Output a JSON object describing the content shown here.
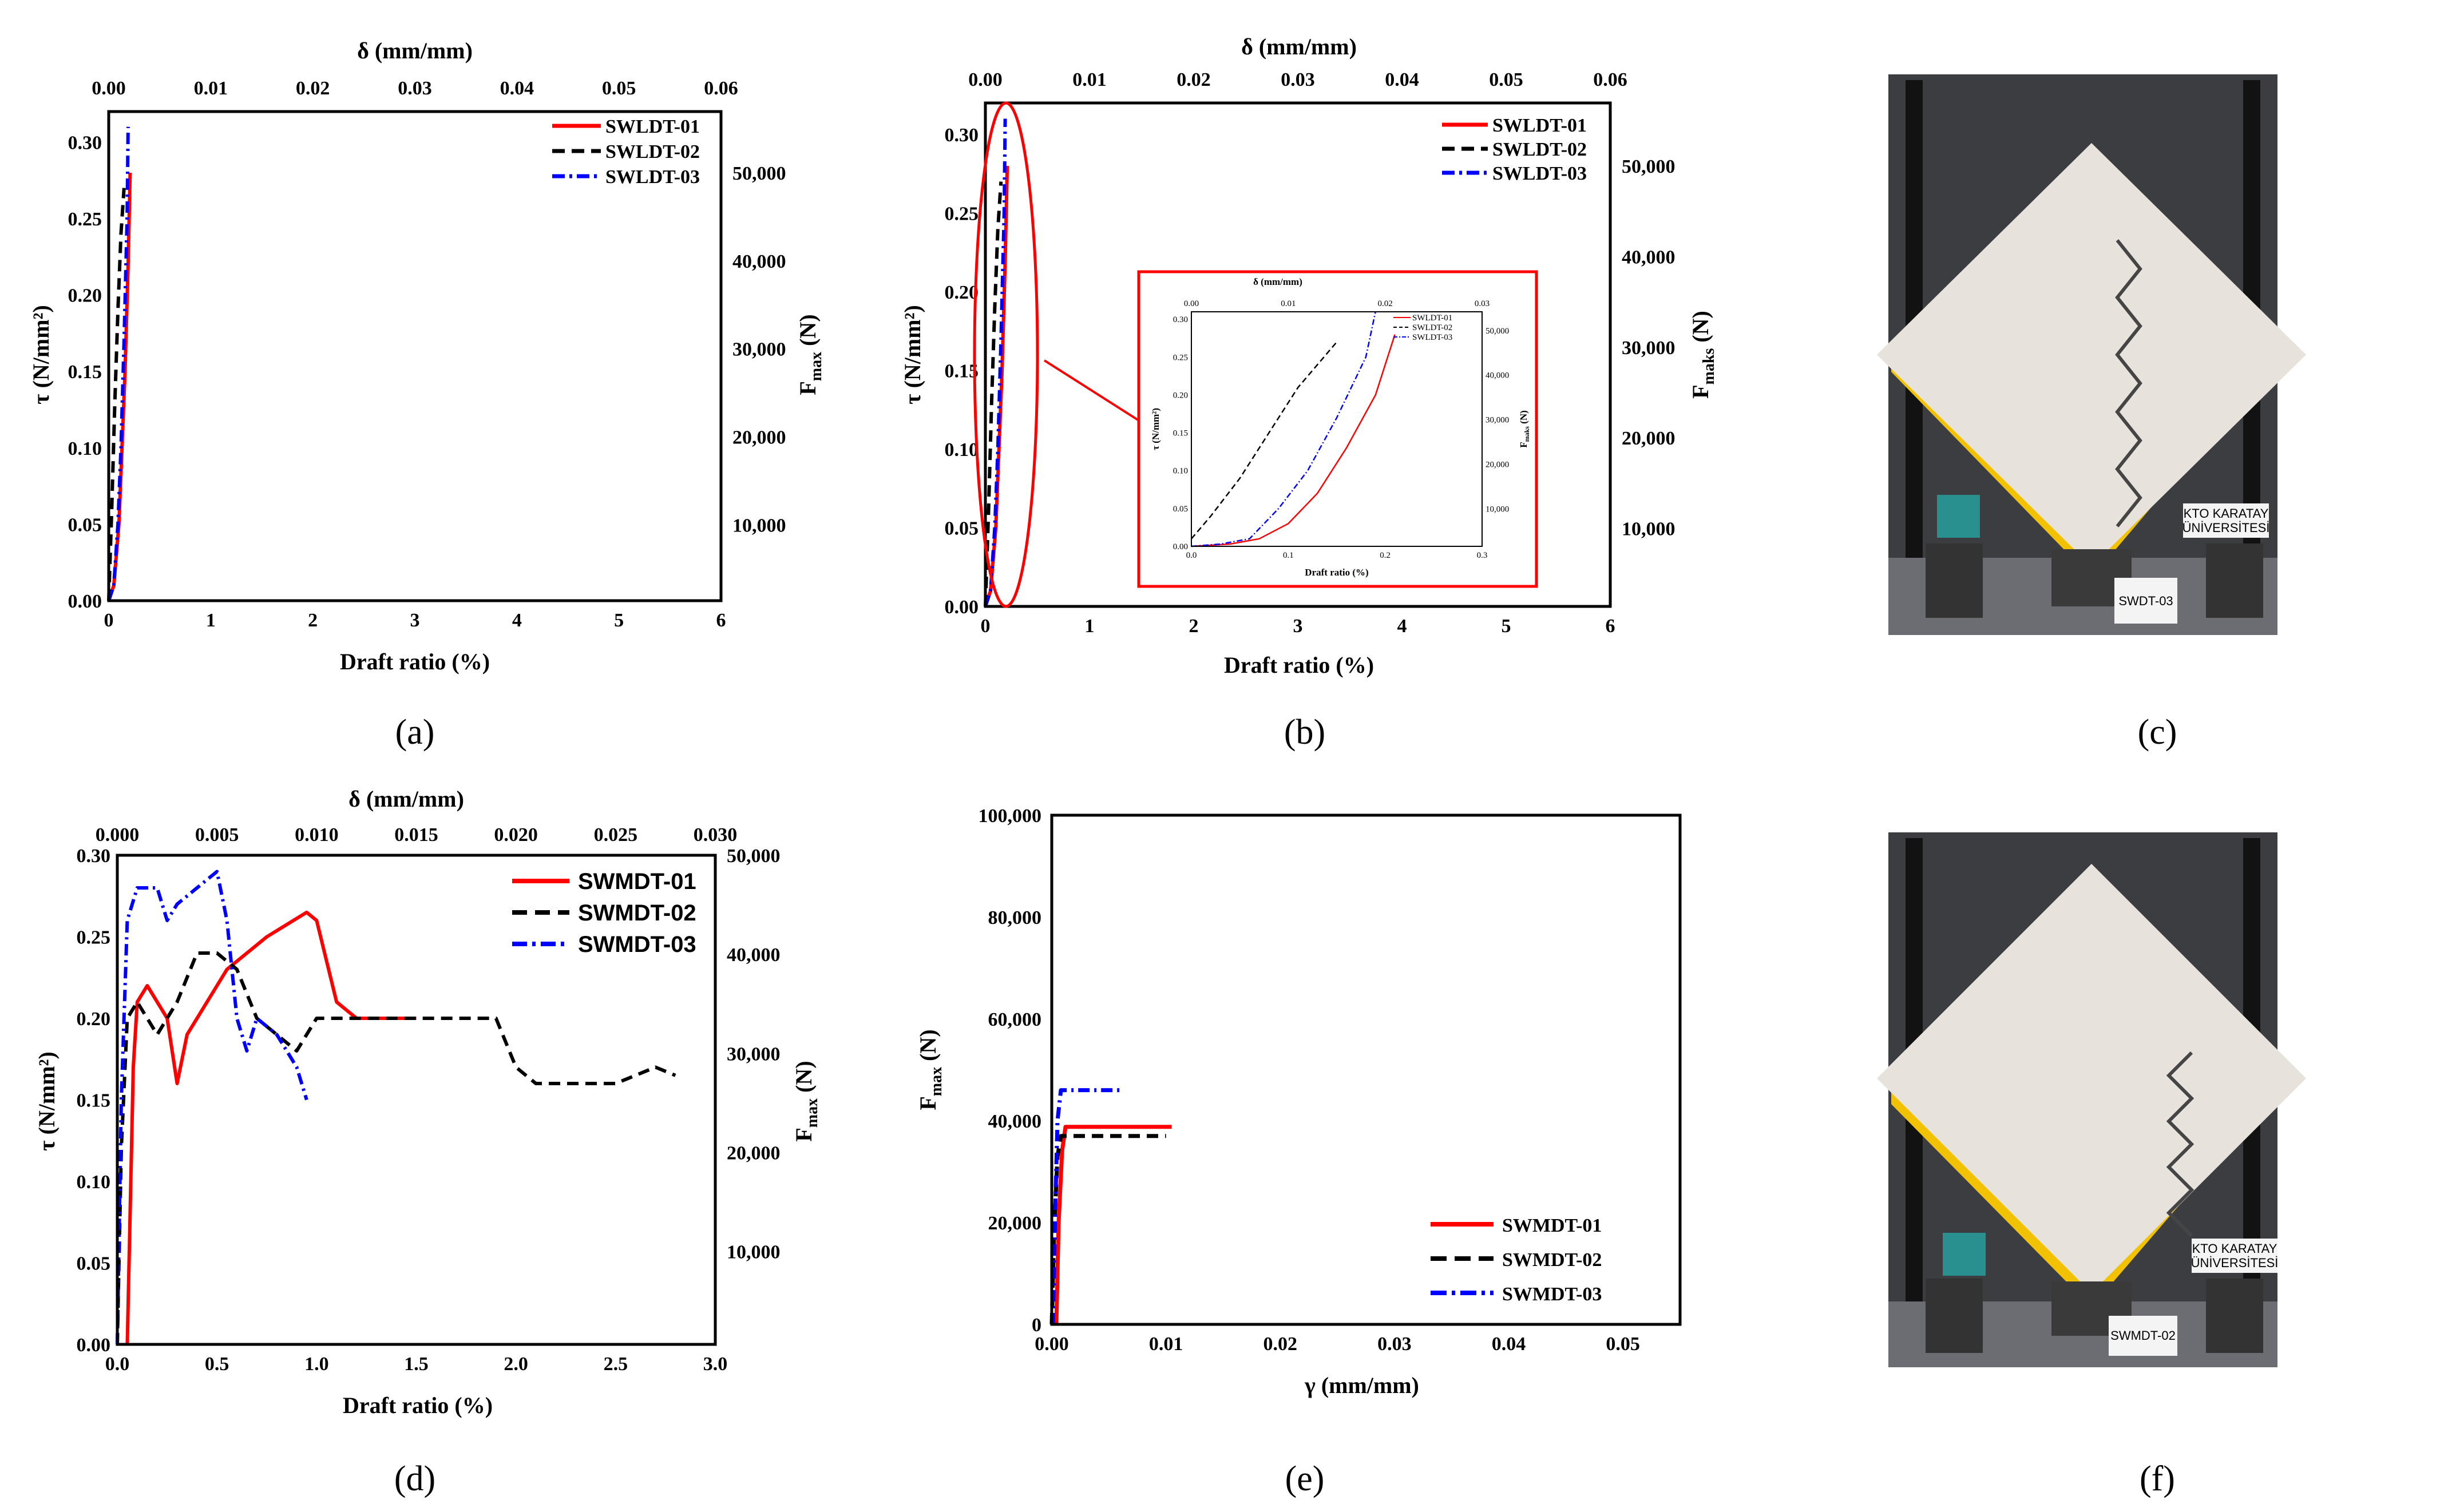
{
  "colors": {
    "red": "#ff0000",
    "black": "#000000",
    "blue": "#0000ff",
    "frame": "#000000",
    "inset_frame": "#ff0000"
  },
  "panels": {
    "a": {
      "caption": "(a)",
      "top_axis_title": "δ (mm/mm)",
      "top_ticks": [
        "0.00",
        "0.01",
        "0.02",
        "0.03",
        "0.04",
        "0.05",
        "0.06"
      ],
      "x_title": "Draft ratio (%)",
      "x_ticks": [
        "0",
        "1",
        "2",
        "3",
        "4",
        "5",
        "6"
      ],
      "y_title": "τ (N/mm²)",
      "y_ticks": [
        "0.00",
        "0.05",
        "0.10",
        "0.15",
        "0.20",
        "0.25",
        "0.30"
      ],
      "right_title": "F",
      "right_title_sub": "max",
      "right_title_unit": " (N)",
      "right_ticks": [
        "10,000",
        "20,000",
        "30,000",
        "40,000",
        "50,000"
      ],
      "legend": [
        "SWLDT-01",
        "SWLDT-02",
        "SWLDT-03"
      ]
    },
    "b": {
      "caption": "(b)",
      "top_axis_title": "δ (mm/mm)",
      "top_ticks": [
        "0.00",
        "0.01",
        "0.02",
        "0.03",
        "0.04",
        "0.05",
        "0.06"
      ],
      "x_title": "Draft ratio (%)",
      "x_ticks": [
        "0",
        "1",
        "2",
        "3",
        "4",
        "5",
        "6"
      ],
      "y_title": "τ (N/mm²)",
      "y_ticks": [
        "0.00",
        "0.05",
        "0.10",
        "0.15",
        "0.20",
        "0.25",
        "0.30"
      ],
      "right_title": "F",
      "right_title_sub": "maks",
      "right_title_unit": " (N)",
      "right_ticks": [
        "10,000",
        "20,000",
        "30,000",
        "40,000",
        "50,000"
      ],
      "legend": [
        "SWLDT-01",
        "SWLDT-02",
        "SWLDT-03"
      ],
      "inset": {
        "top_axis_title": "δ (mm/mm)",
        "top_ticks": [
          "0.00",
          "0.01",
          "0.02",
          "0.03"
        ],
        "x_title": "Draft ratio (%)",
        "x_ticks": [
          "0.0",
          "0.1",
          "0.2",
          "0.3"
        ],
        "y_title": "τ (N/mm²)",
        "y_ticks": [
          "0.00",
          "0.05",
          "0.10",
          "0.15",
          "0.20",
          "0.25",
          "0.30"
        ],
        "right_title": "F",
        "right_title_sub": "maks",
        "right_title_unit": " (N)",
        "right_ticks": [
          "10,000",
          "20,000",
          "30,000",
          "40,000",
          "50,000"
        ],
        "legend": [
          "SWLDT-01",
          "SWLDT-02",
          "SWLDT-03"
        ]
      }
    },
    "c": {
      "caption": "(c)",
      "photo_labels": [
        "KTO KARATAY",
        "ÜNİVERSİTESİ",
        "SWDT-03"
      ]
    },
    "d": {
      "caption": "(d)",
      "top_axis_title": "δ (mm/mm)",
      "top_ticks": [
        "0.000",
        "0.005",
        "0.010",
        "0.015",
        "0.020",
        "0.025",
        "0.030"
      ],
      "x_title": "Draft ratio (%)",
      "x_ticks": [
        "0.0",
        "0.5",
        "1.0",
        "1.5",
        "2.0",
        "2.5",
        "3.0"
      ],
      "y_title": "τ (N/mm²)",
      "y_ticks": [
        "0.00",
        "0.05",
        "0.10",
        "0.15",
        "0.20",
        "0.25",
        "0.30"
      ],
      "right_title": "F",
      "right_title_sub": "max",
      "right_title_unit": " (N)",
      "right_ticks": [
        "10,000",
        "20,000",
        "30,000",
        "40,000",
        "50,000"
      ],
      "legend": [
        "SWMDT-01",
        "SWMDT-02",
        "SWMDT-03"
      ]
    },
    "e": {
      "caption": "(e)",
      "x_title": "γ (mm/mm)",
      "x_ticks": [
        "0.00",
        "0.01",
        "0.02",
        "0.03",
        "0.04",
        "0.05"
      ],
      "y_title": "F",
      "y_title_sub": "max",
      "y_title_unit": " (N)",
      "y_ticks": [
        "0",
        "20,000",
        "40,000",
        "60,000",
        "80,000",
        "100,000"
      ],
      "legend": [
        "SWMDT-01",
        "SWMDT-02",
        "SWMDT-03"
      ]
    },
    "f": {
      "caption": "(f)",
      "photo_labels": [
        "KTO KARATAY",
        "ÜNİVERSİTESİ",
        "SWMDT-02"
      ]
    }
  },
  "chart_data": [
    {
      "id": "a",
      "type": "line",
      "xlabel": "Draft ratio (%)",
      "ylabel": "τ (N/mm²)",
      "xlim": [
        0,
        6
      ],
      "ylim": [
        0,
        0.32
      ],
      "series": [
        {
          "name": "SWLDT-01",
          "style": "solid",
          "x": [
            0.0,
            0.05,
            0.1,
            0.13,
            0.16,
            0.19,
            0.21
          ],
          "y": [
            0.0,
            0.01,
            0.05,
            0.1,
            0.15,
            0.22,
            0.28
          ]
        },
        {
          "name": "SWLDT-02",
          "style": "dash",
          "x": [
            0.0,
            0.03,
            0.06,
            0.09,
            0.12,
            0.15
          ],
          "y": [
            0.0,
            0.06,
            0.13,
            0.19,
            0.24,
            0.27
          ]
        },
        {
          "name": "SWLDT-03",
          "style": "dashdot",
          "x": [
            0.0,
            0.05,
            0.09,
            0.12,
            0.15,
            0.18,
            0.19
          ],
          "y": [
            0.0,
            0.01,
            0.05,
            0.1,
            0.17,
            0.25,
            0.31
          ]
        }
      ]
    },
    {
      "id": "b",
      "type": "line",
      "xlabel": "Draft ratio (%)",
      "ylabel": "τ (N/mm²)",
      "xlim": [
        0,
        6
      ],
      "ylim": [
        0,
        0.32
      ],
      "series": [
        {
          "name": "SWLDT-01",
          "style": "solid",
          "x": [
            0.0,
            0.05,
            0.1,
            0.13,
            0.16,
            0.19,
            0.21
          ],
          "y": [
            0.0,
            0.01,
            0.05,
            0.1,
            0.15,
            0.22,
            0.28
          ]
        },
        {
          "name": "SWLDT-02",
          "style": "dash",
          "x": [
            0.0,
            0.03,
            0.06,
            0.09,
            0.12,
            0.15
          ],
          "y": [
            0.0,
            0.06,
            0.13,
            0.19,
            0.24,
            0.27
          ]
        },
        {
          "name": "SWLDT-03",
          "style": "dashdot",
          "x": [
            0.0,
            0.05,
            0.09,
            0.12,
            0.15,
            0.18,
            0.19
          ],
          "y": [
            0.0,
            0.01,
            0.05,
            0.1,
            0.17,
            0.25,
            0.31
          ]
        }
      ]
    },
    {
      "id": "b-inset",
      "type": "line",
      "xlabel": "Draft ratio (%)",
      "ylabel": "τ (N/mm²)",
      "xlim": [
        0,
        0.3
      ],
      "ylim": [
        0,
        0.31
      ],
      "series": [
        {
          "name": "SWLDT-01",
          "style": "solid",
          "x": [
            0.0,
            0.04,
            0.07,
            0.1,
            0.13,
            0.16,
            0.19,
            0.21
          ],
          "y": [
            0.0,
            0.003,
            0.01,
            0.03,
            0.07,
            0.13,
            0.2,
            0.28
          ]
        },
        {
          "name": "SWLDT-02",
          "style": "dash",
          "x": [
            0.0,
            0.02,
            0.05,
            0.08,
            0.11,
            0.15
          ],
          "y": [
            0.01,
            0.04,
            0.09,
            0.15,
            0.21,
            0.27
          ]
        },
        {
          "name": "SWLDT-03",
          "style": "dashdot",
          "x": [
            0.0,
            0.03,
            0.06,
            0.09,
            0.12,
            0.15,
            0.18,
            0.19
          ],
          "y": [
            0.0,
            0.003,
            0.01,
            0.05,
            0.1,
            0.17,
            0.25,
            0.31
          ]
        }
      ]
    },
    {
      "id": "d",
      "type": "line",
      "xlabel": "Draft ratio (%)",
      "ylabel": "τ (N/mm²)",
      "xlim": [
        0,
        3.0
      ],
      "ylim": [
        0,
        0.3
      ],
      "series": [
        {
          "name": "SWMDT-01",
          "style": "solid",
          "x": [
            0.05,
            0.08,
            0.1,
            0.15,
            0.25,
            0.3,
            0.35,
            0.55,
            0.75,
            0.95,
            1.0,
            1.1,
            1.2,
            1.3,
            1.4,
            1.5
          ],
          "y": [
            0.0,
            0.17,
            0.21,
            0.22,
            0.2,
            0.16,
            0.19,
            0.23,
            0.25,
            0.265,
            0.26,
            0.21,
            0.2,
            0.2,
            0.2,
            0.2
          ]
        },
        {
          "name": "SWMDT-02",
          "style": "dash",
          "x": [
            0.0,
            0.02,
            0.05,
            0.1,
            0.2,
            0.3,
            0.4,
            0.5,
            0.6,
            0.7,
            0.8,
            0.9,
            1.0,
            1.2,
            1.5,
            1.9,
            2.0,
            2.1,
            2.2,
            2.5,
            2.7,
            2.8
          ],
          "y": [
            0.0,
            0.12,
            0.2,
            0.21,
            0.19,
            0.21,
            0.24,
            0.24,
            0.23,
            0.2,
            0.19,
            0.18,
            0.2,
            0.2,
            0.2,
            0.2,
            0.17,
            0.16,
            0.16,
            0.16,
            0.17,
            0.165
          ]
        },
        {
          "name": "SWMDT-03",
          "style": "dashdot",
          "x": [
            0.0,
            0.02,
            0.05,
            0.1,
            0.2,
            0.25,
            0.3,
            0.4,
            0.5,
            0.55,
            0.6,
            0.65,
            0.7,
            0.8,
            0.9,
            0.95
          ],
          "y": [
            0.0,
            0.15,
            0.26,
            0.28,
            0.28,
            0.26,
            0.27,
            0.28,
            0.29,
            0.26,
            0.2,
            0.18,
            0.2,
            0.19,
            0.17,
            0.15
          ]
        }
      ]
    },
    {
      "id": "e",
      "type": "line",
      "xlabel": "γ (mm/mm)",
      "ylabel": "Fmax (N)",
      "xlim": [
        0,
        0.055
      ],
      "ylim": [
        0,
        100000
      ],
      "series": [
        {
          "name": "SWMDT-01",
          "style": "solid",
          "x": [
            0.0004,
            0.0006,
            0.0009,
            0.0012,
            0.0105
          ],
          "y": [
            0,
            20000,
            34000,
            38800,
            38800
          ]
        },
        {
          "name": "SWMDT-02",
          "style": "dash",
          "x": [
            0.0,
            0.0002,
            0.0005,
            0.0008,
            0.01
          ],
          "y": [
            0,
            18000,
            33000,
            37000,
            37000
          ]
        },
        {
          "name": "SWMDT-03",
          "style": "dashdot",
          "x": [
            0.0001,
            0.0003,
            0.0005,
            0.0008,
            0.006
          ],
          "y": [
            0,
            22000,
            40000,
            46000,
            46000
          ]
        }
      ]
    }
  ]
}
